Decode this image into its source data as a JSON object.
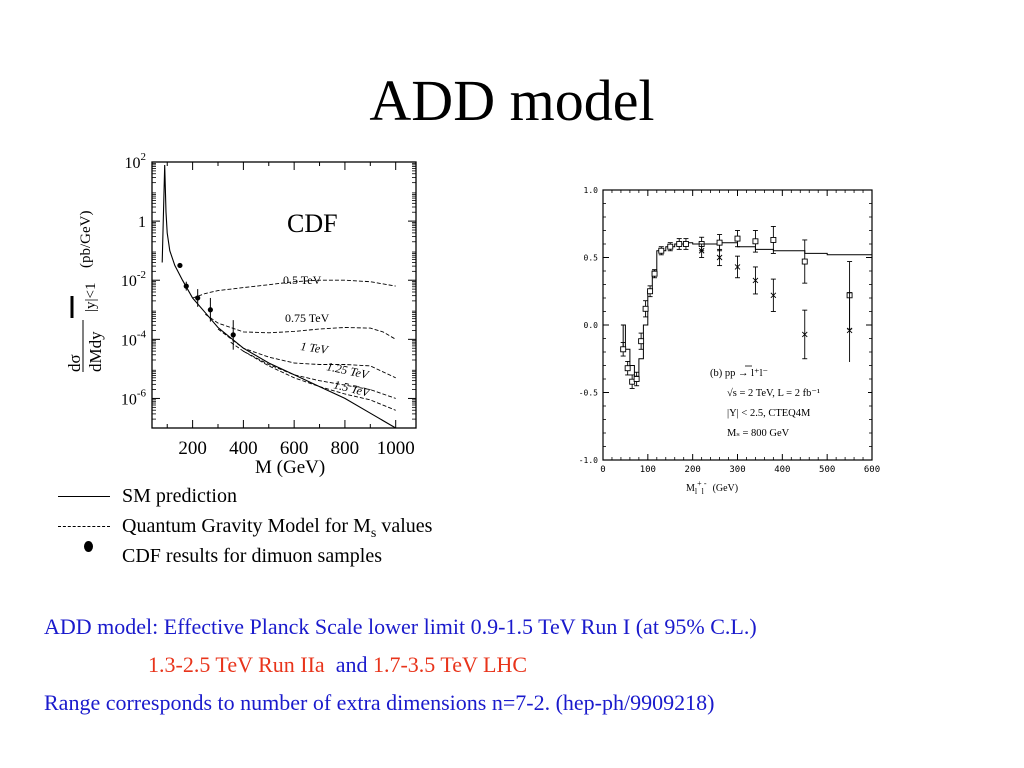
{
  "slide": {
    "title": "ADD model"
  },
  "chart_data": [
    {
      "type": "line",
      "label": "CDF",
      "xlabel": "M (GeV)",
      "ylabel_num": "dσ",
      "ylabel_den": "dMdy",
      "ylabel_sub": "|y|<1",
      "ylabel_unit": "(pb/GeV)",
      "x_ticks": [
        "200",
        "400",
        "600",
        "800",
        "1000"
      ],
      "xlim": [
        40,
        1080
      ],
      "y_scale": "log",
      "y_ticks": [
        {
          "base": "10",
          "exp": "2",
          "value": 2
        },
        {
          "base": "1",
          "exp": "",
          "value": 0
        },
        {
          "base": "10",
          "exp": "-2",
          "value": -2
        },
        {
          "base": "10",
          "exp": "-4",
          "value": -4
        },
        {
          "base": "10",
          "exp": "-6",
          "value": -6
        }
      ],
      "ylim_log10": [
        -7,
        2
      ],
      "series": [
        {
          "kind": "solid",
          "x": [
            80,
            90,
            95,
            100,
            110,
            130,
            160,
            200,
            250,
            300,
            400,
            500,
            600,
            700,
            800,
            900,
            1000
          ],
          "log10y": [
            -1.4,
            1.9,
            0.3,
            -0.4,
            -1.0,
            -1.5,
            -2.0,
            -2.6,
            -3.1,
            -3.6,
            -4.3,
            -4.8,
            -5.2,
            -5.6,
            -6.0,
            -6.5,
            -7.0
          ]
        },
        {
          "kind": "dashed",
          "label": "0.5 TeV",
          "x": [
            200,
            250,
            300,
            400,
            500,
            600,
            700,
            800,
            900,
            1000
          ],
          "log10y": [
            -2.6,
            -2.45,
            -2.35,
            -2.25,
            -2.15,
            -2.05,
            -2.0,
            -2.0,
            -2.05,
            -2.2
          ]
        },
        {
          "kind": "dashed",
          "label": "0.75 TeV",
          "x": [
            250,
            300,
            400,
            500,
            600,
            700,
            800,
            900,
            950,
            1000
          ],
          "log10y": [
            -3.15,
            -3.45,
            -3.75,
            -3.78,
            -3.73,
            -3.65,
            -3.6,
            -3.62,
            -3.75,
            -4.0
          ]
        },
        {
          "kind": "dashed",
          "label": "1 TeV",
          "x": [
            300,
            400,
            500,
            600,
            700,
            800,
            900,
            1000
          ],
          "log10y": [
            -3.65,
            -4.3,
            -4.6,
            -4.8,
            -4.85,
            -4.85,
            -4.9,
            -5.3
          ]
        },
        {
          "kind": "dashed",
          "label": "1.25 TeV",
          "x": [
            350,
            400,
            500,
            600,
            700,
            800,
            900,
            1000
          ],
          "log10y": [
            -4.1,
            -4.4,
            -4.85,
            -5.2,
            -5.4,
            -5.55,
            -5.7,
            -6.0
          ]
        },
        {
          "kind": "dashed",
          "label": "1.5 TeV",
          "x": [
            400,
            500,
            600,
            700,
            800,
            900,
            1000
          ],
          "log10y": [
            -4.4,
            -4.9,
            -5.3,
            -5.6,
            -5.85,
            -6.05,
            -6.4
          ]
        }
      ],
      "points": [
        {
          "x": 150,
          "log10y": -1.5,
          "err": 0.08
        },
        {
          "x": 175,
          "log10y": -2.2,
          "err": 0.15
        },
        {
          "x": 220,
          "log10y": -2.6,
          "err": 0.3
        },
        {
          "x": 270,
          "log10y": -3.0,
          "err": 0.4
        },
        {
          "x": 360,
          "log10y": -3.85,
          "err": 0.5
        }
      ]
    },
    {
      "type": "scatter",
      "xlabel": "M",
      "xlabel_sub": "l",
      "xlabel_sup": "+",
      "xlabel_sub2": "l",
      "xlabel_sup2": "-",
      "xlabel_unit": "(GeV)",
      "x_ticks": [
        "0",
        "100",
        "200",
        "300",
        "400",
        "500",
        "600"
      ],
      "y_ticks": [
        "1.0",
        "0.5",
        "0.0",
        "-0.5",
        "-1.0"
      ],
      "xlim": [
        0,
        600
      ],
      "ylim": [
        -1.0,
        1.0
      ],
      "annotations": [
        "(b) pp → l⁺l⁻",
        "√s = 2 TeV, L = 2 fb⁻¹",
        "|Y| < 2.5, CTEQ4M",
        "Mₛ = 800 GeV"
      ],
      "sm_step": {
        "x": [
          40,
          50,
          60,
          70,
          80,
          90,
          100,
          110,
          120,
          140,
          160,
          180,
          200,
          230,
          260,
          300,
          340,
          380,
          450,
          500,
          600
        ],
        "y": [
          0.0,
          -0.18,
          -0.3,
          -0.38,
          -0.25,
          0.0,
          0.25,
          0.4,
          0.55,
          0.58,
          0.6,
          0.61,
          0.6,
          0.6,
          0.61,
          0.58,
          0.56,
          0.55,
          0.53,
          0.52,
          0.52
        ]
      },
      "square_points": [
        {
          "x": 45,
          "y": -0.18,
          "err": 0.05
        },
        {
          "x": 55,
          "y": -0.32,
          "err": 0.05
        },
        {
          "x": 65,
          "y": -0.42,
          "err": 0.05
        },
        {
          "x": 75,
          "y": -0.4,
          "err": 0.05
        },
        {
          "x": 85,
          "y": -0.12,
          "err": 0.06
        },
        {
          "x": 95,
          "y": 0.12,
          "err": 0.06
        },
        {
          "x": 105,
          "y": 0.25,
          "err": 0.04
        },
        {
          "x": 115,
          "y": 0.38,
          "err": 0.03
        },
        {
          "x": 130,
          "y": 0.55,
          "err": 0.03
        },
        {
          "x": 150,
          "y": 0.58,
          "err": 0.03
        },
        {
          "x": 170,
          "y": 0.6,
          "err": 0.04
        },
        {
          "x": 185,
          "y": 0.6,
          "err": 0.04
        },
        {
          "x": 220,
          "y": 0.6,
          "err": 0.05
        },
        {
          "x": 260,
          "y": 0.61,
          "err": 0.06
        },
        {
          "x": 300,
          "y": 0.64,
          "err": 0.06
        },
        {
          "x": 340,
          "y": 0.62,
          "err": 0.08
        },
        {
          "x": 380,
          "y": 0.63,
          "err": 0.1
        },
        {
          "x": 450,
          "y": 0.47,
          "err": 0.16
        },
        {
          "x": 550,
          "y": 0.22,
          "err": 0.25
        }
      ],
      "cross_points": [
        {
          "x": 220,
          "y": 0.55,
          "err": 0.05
        },
        {
          "x": 260,
          "y": 0.5,
          "err": 0.06
        },
        {
          "x": 300,
          "y": 0.43,
          "err": 0.08
        },
        {
          "x": 340,
          "y": 0.33,
          "err": 0.1
        },
        {
          "x": 380,
          "y": 0.22,
          "err": 0.12
        },
        {
          "x": 450,
          "y": -0.07,
          "err": 0.18
        },
        {
          "x": 550,
          "y": -0.04,
          "err": 0.28
        }
      ]
    }
  ],
  "legend": {
    "sm_label": "SM prediction",
    "qg_label": "Quantum Gravity Model for M",
    "qg_sub": "s",
    "qg_suffix": " values",
    "cdf_label": "CDF results for dimuon samples"
  },
  "caption": {
    "line1": "ADD model: Effective Planck Scale lower limit 0.9-1.5 TeV Run I (at 95% C.L.)",
    "line2_a": "1.3-2.5 TeV Run IIa",
    "line2_b": "and",
    "line2_c": "1.7-3.5 TeV LHC",
    "line3": "Range corresponds to number of extra dimensions n=7-2. (hep-ph/9909218)"
  },
  "colors": {
    "caption_blue": "#1a1acc",
    "caption_red": "#e8341b"
  }
}
